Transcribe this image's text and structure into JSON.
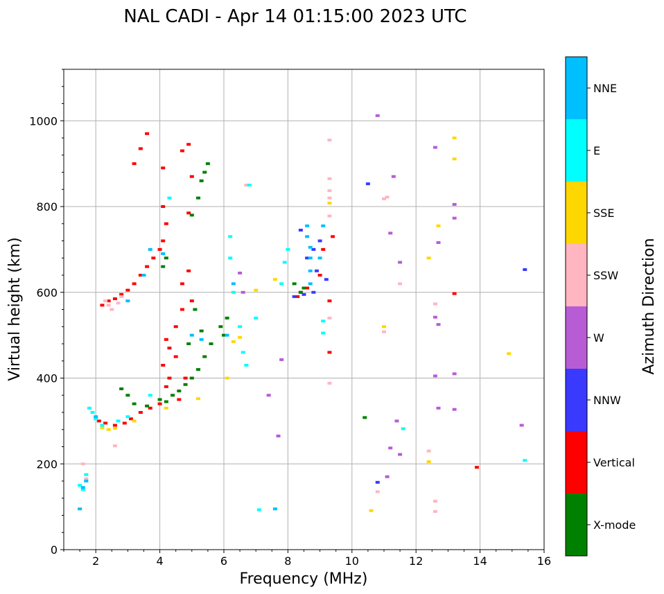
{
  "chart_data": {
    "type": "scatter",
    "title": "NAL CADI - Apr 14 01:15:00 2023 UTC",
    "xlabel": "Frequency (MHz)",
    "ylabel": "Virtual height (km)",
    "xlim": [
      1,
      16
    ],
    "ylim": [
      0,
      1120
    ],
    "xticks": [
      2,
      4,
      6,
      8,
      10,
      12,
      14,
      16
    ],
    "yticks": [
      0,
      200,
      400,
      600,
      800,
      1000
    ],
    "grid": true,
    "colorbar": {
      "title": "Azimuth Direction",
      "categories": [
        {
          "name": "X-mode",
          "color": "#008000"
        },
        {
          "name": "Vertical",
          "color": "#ff0000"
        },
        {
          "name": "NNW",
          "color": "#3a3aff"
        },
        {
          "name": "W",
          "color": "#b85cd6"
        },
        {
          "name": "SSW",
          "color": "#ffb6c1"
        },
        {
          "name": "SSE",
          "color": "#ffd700"
        },
        {
          "name": "E",
          "color": "#00ffff"
        },
        {
          "name": "NNE",
          "color": "#00bfff"
        }
      ]
    },
    "series": [
      {
        "name": "Vertical",
        "points": [
          [
            2.2,
            570
          ],
          [
            2.4,
            580
          ],
          [
            2.6,
            585
          ],
          [
            2.8,
            595
          ],
          [
            3.0,
            605
          ],
          [
            3.2,
            620
          ],
          [
            3.4,
            640
          ],
          [
            3.6,
            660
          ],
          [
            3.8,
            680
          ],
          [
            4.0,
            700
          ],
          [
            4.1,
            720
          ],
          [
            4.2,
            760
          ],
          [
            4.1,
            800
          ],
          [
            3.2,
            900
          ],
          [
            3.4,
            935
          ],
          [
            3.6,
            970
          ],
          [
            4.1,
            890
          ],
          [
            4.7,
            930
          ],
          [
            4.9,
            945
          ],
          [
            5.0,
            870
          ],
          [
            4.9,
            785
          ],
          [
            4.9,
            650
          ],
          [
            4.7,
            620
          ],
          [
            2.1,
            300
          ],
          [
            2.3,
            295
          ],
          [
            2.6,
            290
          ],
          [
            2.9,
            295
          ],
          [
            3.1,
            305
          ],
          [
            3.4,
            320
          ],
          [
            3.7,
            330
          ],
          [
            4.0,
            340
          ],
          [
            4.2,
            380
          ],
          [
            4.1,
            430
          ],
          [
            4.2,
            490
          ],
          [
            4.3,
            470
          ],
          [
            4.5,
            520
          ],
          [
            4.7,
            560
          ],
          [
            5.0,
            580
          ],
          [
            4.8,
            400
          ],
          [
            4.5,
            450
          ],
          [
            4.3,
            400
          ],
          [
            4.6,
            350
          ],
          [
            8.3,
            590
          ],
          [
            8.4,
            600
          ],
          [
            8.6,
            610
          ],
          [
            9.0,
            640
          ],
          [
            9.1,
            700
          ],
          [
            9.3,
            580
          ],
          [
            9.4,
            730
          ],
          [
            9.3,
            460
          ],
          [
            13.2,
            597
          ],
          [
            13.9,
            192
          ]
        ]
      },
      {
        "name": "X-mode",
        "points": [
          [
            2.8,
            375
          ],
          [
            3.0,
            360
          ],
          [
            3.2,
            340
          ],
          [
            3.6,
            335
          ],
          [
            4.0,
            350
          ],
          [
            4.2,
            345
          ],
          [
            4.4,
            360
          ],
          [
            4.6,
            370
          ],
          [
            4.8,
            385
          ],
          [
            5.0,
            400
          ],
          [
            5.2,
            420
          ],
          [
            5.4,
            450
          ],
          [
            5.6,
            480
          ],
          [
            5.9,
            520
          ],
          [
            6.0,
            500
          ],
          [
            6.1,
            540
          ],
          [
            4.1,
            660
          ],
          [
            4.2,
            680
          ],
          [
            5.2,
            820
          ],
          [
            5.3,
            860
          ],
          [
            5.4,
            880
          ],
          [
            5.5,
            900
          ],
          [
            5.0,
            780
          ],
          [
            5.1,
            560
          ],
          [
            4.9,
            480
          ],
          [
            5.3,
            510
          ],
          [
            8.4,
            600
          ],
          [
            8.5,
            610
          ],
          [
            8.2,
            620
          ],
          [
            10.4,
            308
          ]
        ]
      },
      {
        "name": "NNW",
        "points": [
          [
            8.2,
            590
          ],
          [
            8.5,
            595
          ],
          [
            8.8,
            600
          ],
          [
            8.4,
            745
          ],
          [
            9.0,
            720
          ],
          [
            8.8,
            700
          ],
          [
            8.6,
            680
          ],
          [
            8.9,
            650
          ],
          [
            9.2,
            630
          ],
          [
            10.5,
            853
          ],
          [
            10.8,
            157
          ],
          [
            15.4,
            653
          ]
        ]
      },
      {
        "name": "W",
        "points": [
          [
            6.5,
            645
          ],
          [
            6.6,
            600
          ],
          [
            7.4,
            360
          ],
          [
            7.7,
            265
          ],
          [
            7.8,
            443
          ],
          [
            11.2,
            738
          ],
          [
            11.4,
            300
          ],
          [
            11.5,
            670
          ],
          [
            11.5,
            222
          ],
          [
            11.2,
            237
          ],
          [
            11.1,
            170
          ],
          [
            12.6,
            938
          ],
          [
            12.7,
            716
          ],
          [
            12.6,
            542
          ],
          [
            12.7,
            525
          ],
          [
            12.6,
            405
          ],
          [
            12.7,
            330
          ],
          [
            13.2,
            805
          ],
          [
            13.2,
            773
          ],
          [
            13.2,
            410
          ],
          [
            13.2,
            327
          ],
          [
            10.8,
            1012
          ],
          [
            11.3,
            870
          ],
          [
            15.3,
            290
          ]
        ]
      },
      {
        "name": "SSW",
        "points": [
          [
            1.6,
            200
          ],
          [
            1.7,
            165
          ],
          [
            2.3,
            580
          ],
          [
            2.4,
            570
          ],
          [
            2.5,
            560
          ],
          [
            2.7,
            575
          ],
          [
            2.8,
            590
          ],
          [
            2.6,
            242
          ],
          [
            6.7,
            850
          ],
          [
            9.3,
            955
          ],
          [
            9.3,
            865
          ],
          [
            9.3,
            837
          ],
          [
            9.3,
            820
          ],
          [
            9.3,
            778
          ],
          [
            9.3,
            540
          ],
          [
            9.3,
            388
          ],
          [
            11.0,
            818
          ],
          [
            11.1,
            822
          ],
          [
            11.5,
            620
          ],
          [
            11.0,
            508
          ],
          [
            10.8,
            135
          ],
          [
            12.6,
            573
          ],
          [
            12.4,
            230
          ],
          [
            12.6,
            113
          ],
          [
            12.6,
            89
          ]
        ]
      },
      {
        "name": "SSE",
        "points": [
          [
            2.2,
            284
          ],
          [
            2.4,
            280
          ],
          [
            2.6,
            283
          ],
          [
            3.2,
            300
          ],
          [
            4.2,
            330
          ],
          [
            5.2,
            352
          ],
          [
            6.1,
            400
          ],
          [
            6.3,
            485
          ],
          [
            6.5,
            495
          ],
          [
            7.0,
            605
          ],
          [
            7.6,
            630
          ],
          [
            9.3,
            808
          ],
          [
            11.0,
            520
          ],
          [
            10.6,
            91
          ],
          [
            12.4,
            680
          ],
          [
            12.7,
            755
          ],
          [
            12.4,
            205
          ],
          [
            13.2,
            960
          ],
          [
            13.2,
            911
          ],
          [
            14.9,
            457
          ]
        ]
      },
      {
        "name": "E",
        "points": [
          [
            1.5,
            150
          ],
          [
            1.6,
            140
          ],
          [
            1.7,
            175
          ],
          [
            1.8,
            330
          ],
          [
            1.9,
            320
          ],
          [
            2.0,
            305
          ],
          [
            2.2,
            290
          ],
          [
            2.7,
            300
          ],
          [
            3.0,
            310
          ],
          [
            3.7,
            360
          ],
          [
            4.3,
            820
          ],
          [
            6.2,
            730
          ],
          [
            6.2,
            680
          ],
          [
            6.3,
            600
          ],
          [
            6.5,
            520
          ],
          [
            6.6,
            460
          ],
          [
            6.7,
            430
          ],
          [
            6.8,
            850
          ],
          [
            7.0,
            540
          ],
          [
            7.1,
            93
          ],
          [
            7.8,
            620
          ],
          [
            7.9,
            670
          ],
          [
            8.0,
            700
          ],
          [
            9.1,
            533
          ],
          [
            9.1,
            505
          ],
          [
            11.6,
            282
          ],
          [
            15.4,
            208
          ]
        ]
      },
      {
        "name": "NNE",
        "points": [
          [
            1.5,
            95
          ],
          [
            1.6,
            145
          ],
          [
            1.7,
            160
          ],
          [
            2.0,
            310
          ],
          [
            3.0,
            580
          ],
          [
            3.5,
            640
          ],
          [
            3.7,
            700
          ],
          [
            4.1,
            690
          ],
          [
            5.0,
            500
          ],
          [
            5.3,
            490
          ],
          [
            6.3,
            620
          ],
          [
            6.1,
            500
          ],
          [
            7.6,
            95
          ],
          [
            8.6,
            755
          ],
          [
            8.6,
            730
          ],
          [
            8.7,
            705
          ],
          [
            8.7,
            680
          ],
          [
            8.7,
            650
          ],
          [
            8.7,
            620
          ],
          [
            9.1,
            755
          ],
          [
            9.0,
            680
          ]
        ]
      }
    ]
  }
}
